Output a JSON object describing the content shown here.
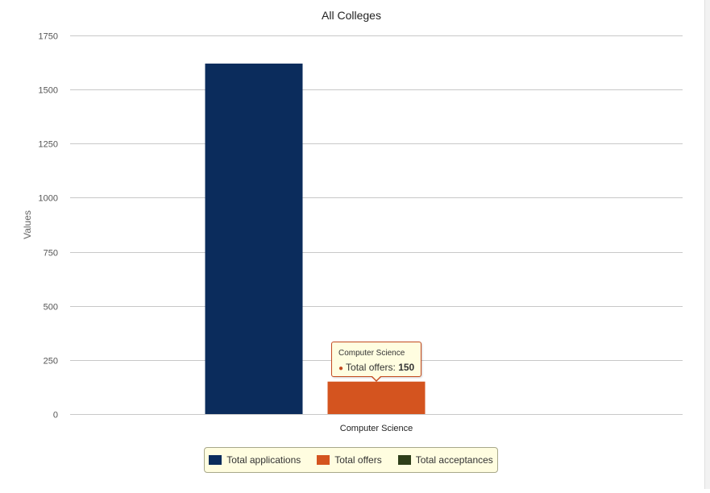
{
  "chart_data": {
    "type": "bar",
    "title": "All Colleges",
    "xlabel": "",
    "ylabel": "Values",
    "categories": [
      "Computer Science"
    ],
    "series": [
      {
        "name": "Total applications",
        "values": [
          1620
        ],
        "color": "#0b2c5c"
      },
      {
        "name": "Total offers",
        "values": [
          150
        ],
        "color": "#d4541f"
      },
      {
        "name": "Total acceptances",
        "values": [
          0
        ],
        "color": "#2e3e19"
      }
    ],
    "ylim": [
      0,
      1750
    ],
    "yticks": [
      0,
      250,
      500,
      750,
      1000,
      1250,
      1500,
      1750
    ],
    "grid": true,
    "legend_position": "bottom"
  },
  "tooltip": {
    "category": "Computer Science",
    "series_name": "Total offers",
    "value": "150"
  }
}
